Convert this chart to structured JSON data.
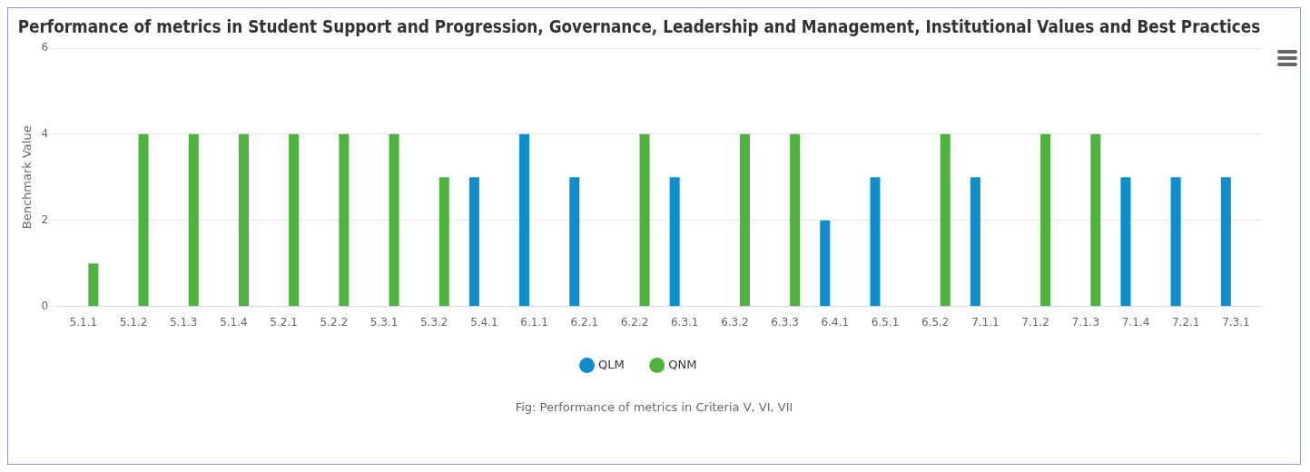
{
  "chart_data": {
    "type": "bar",
    "title": "Performance of metrics in Student Support and Progression, Governance, Leadership and Management, Institutional Values and Best Practices",
    "ylabel": "Benchmark Value",
    "categories": [
      "5.1.1",
      "5.1.2",
      "5.1.3",
      "5.1.4",
      "5.2.1",
      "5.2.2",
      "5.3.1",
      "5.3.2",
      "5.4.1",
      "6.1.1",
      "6.2.1",
      "6.2.2",
      "6.3.1",
      "6.3.2",
      "6.3.3",
      "6.4.1",
      "6.5.1",
      "6.5.2",
      "7.1.1",
      "7.1.2",
      "7.1.3",
      "7.1.4",
      "7.2.1",
      "7.3.1"
    ],
    "series": [
      {
        "name": "QLM",
        "color": "#0d8ecf",
        "values": [
          null,
          null,
          null,
          null,
          null,
          null,
          null,
          null,
          3,
          4,
          3,
          null,
          3,
          null,
          null,
          2,
          3,
          null,
          3,
          null,
          null,
          3,
          3,
          3
        ]
      },
      {
        "name": "QNM",
        "color": "#4db33d",
        "values": [
          1,
          4,
          4,
          4,
          4,
          4,
          4,
          3,
          null,
          null,
          null,
          4,
          null,
          4,
          4,
          null,
          null,
          4,
          null,
          4,
          4,
          null,
          null,
          null
        ]
      }
    ],
    "ylim": [
      0,
      6
    ],
    "yticks": [
      0,
      2,
      4,
      6
    ],
    "grid": "y",
    "legend": "bottom",
    "annotations": [
      "Fig: Performance of metrics in Criteria V, VI, VII"
    ]
  }
}
